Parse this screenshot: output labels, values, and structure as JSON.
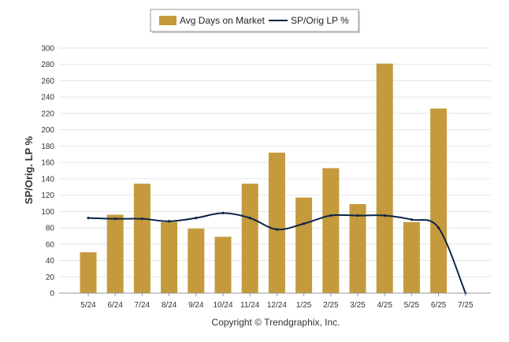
{
  "chart_data": {
    "type": "bar",
    "categories": [
      "5/24",
      "6/24",
      "7/24",
      "8/24",
      "9/24",
      "10/24",
      "11/24",
      "12/24",
      "1/25",
      "2/25",
      "3/25",
      "4/25",
      "5/25",
      "6/25",
      "7/25"
    ],
    "series": [
      {
        "name": "Avg Days on Market",
        "type": "bar",
        "color": "#C49A3C",
        "values": [
          50,
          96,
          134,
          87,
          79,
          69,
          134,
          172,
          117,
          153,
          109,
          281,
          87,
          226,
          0
        ]
      },
      {
        "name": "SP/Orig LP %",
        "type": "line",
        "color": "#0D2447",
        "values": [
          92,
          91,
          91,
          88,
          92,
          98,
          92,
          78,
          85,
          95,
          95,
          95,
          90,
          80,
          0
        ]
      }
    ],
    "ylabel": "SP/Orig. LP %",
    "ylim": [
      0,
      300
    ],
    "yticks": [
      0,
      20,
      40,
      60,
      80,
      100,
      120,
      140,
      160,
      180,
      200,
      220,
      240,
      260,
      280,
      300
    ],
    "grid": true,
    "legend_position": "top-center"
  },
  "legend": {
    "bar_label": "Avg Days on Market",
    "line_label": "SP/Orig LP %"
  },
  "credit": "Copyright © Trendgraphix, Inc."
}
